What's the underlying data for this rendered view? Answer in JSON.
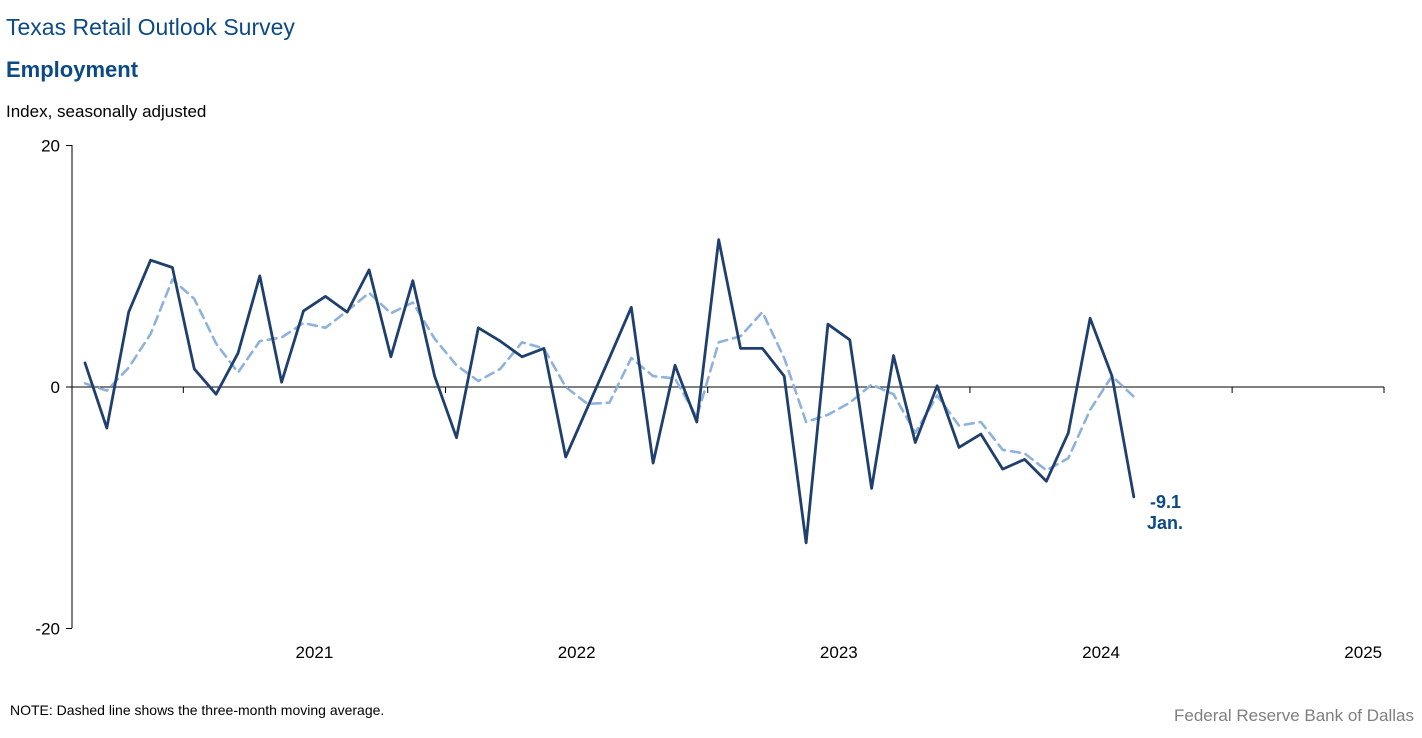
{
  "header": {
    "title": "Texas Retail Outlook Survey",
    "subtitle": "Employment",
    "unit": "Index, seasonally adjusted"
  },
  "footer": {
    "note": "NOTE: Dashed line shows the three-month  moving average.",
    "source": "Federal Reserve Bank of Dallas"
  },
  "colors": {
    "series_main": "#1f3f6e",
    "series_avg": "#8fb2dc",
    "annotation": "#0b4a85"
  },
  "chart_data": {
    "type": "line",
    "title": "Employment",
    "ylabel": "Index, seasonally adjusted",
    "ylim": [
      -20,
      20
    ],
    "yticks": [
      20,
      0,
      -20
    ],
    "xticks": [
      "2021",
      "2022",
      "2023",
      "2024",
      "2025"
    ],
    "x_start": "2020-08",
    "x_end": "2025-12",
    "grid": false,
    "legend": "none",
    "series": [
      {
        "style": "solid",
        "values": [
          2.0,
          -3.4,
          6.2,
          10.5,
          9.9,
          1.5,
          -0.6,
          2.8,
          9.2,
          0.4,
          6.3,
          7.5,
          6.2,
          9.7,
          2.5,
          8.8,
          0.9,
          -4.2,
          4.9,
          3.8,
          2.5,
          3.2,
          -5.8,
          -1.7,
          2.4,
          6.6,
          -6.3,
          1.8,
          -2.9,
          12.2,
          3.2,
          3.2,
          0.9,
          -12.9,
          5.2,
          3.9,
          -8.4,
          2.6,
          -4.6,
          0.1,
          -5.0,
          -3.9,
          -6.8,
          -6.0,
          -7.8,
          -3.8,
          5.7,
          0.9,
          -9.1
        ]
      },
      {
        "style": "dashed",
        "values": [
          0.3,
          -0.3,
          1.6,
          4.4,
          8.9,
          7.3,
          3.6,
          1.2,
          3.8,
          4.1,
          5.3,
          4.9,
          6.3,
          7.8,
          6.1,
          7.0,
          4.0,
          1.8,
          0.5,
          1.5,
          3.7,
          3.2,
          0.0,
          -1.4,
          -1.3,
          2.4,
          0.9,
          0.7,
          -2.5,
          3.7,
          4.2,
          6.2,
          2.4,
          -2.9,
          -2.3,
          -1.3,
          0.2,
          -0.6,
          -3.8,
          -0.7,
          -3.2,
          -2.9,
          -5.2,
          -5.5,
          -6.9,
          -5.9,
          -1.9,
          0.9,
          -0.8
        ]
      }
    ],
    "annotation": {
      "value": "-9.1",
      "label": "Jan."
    }
  }
}
